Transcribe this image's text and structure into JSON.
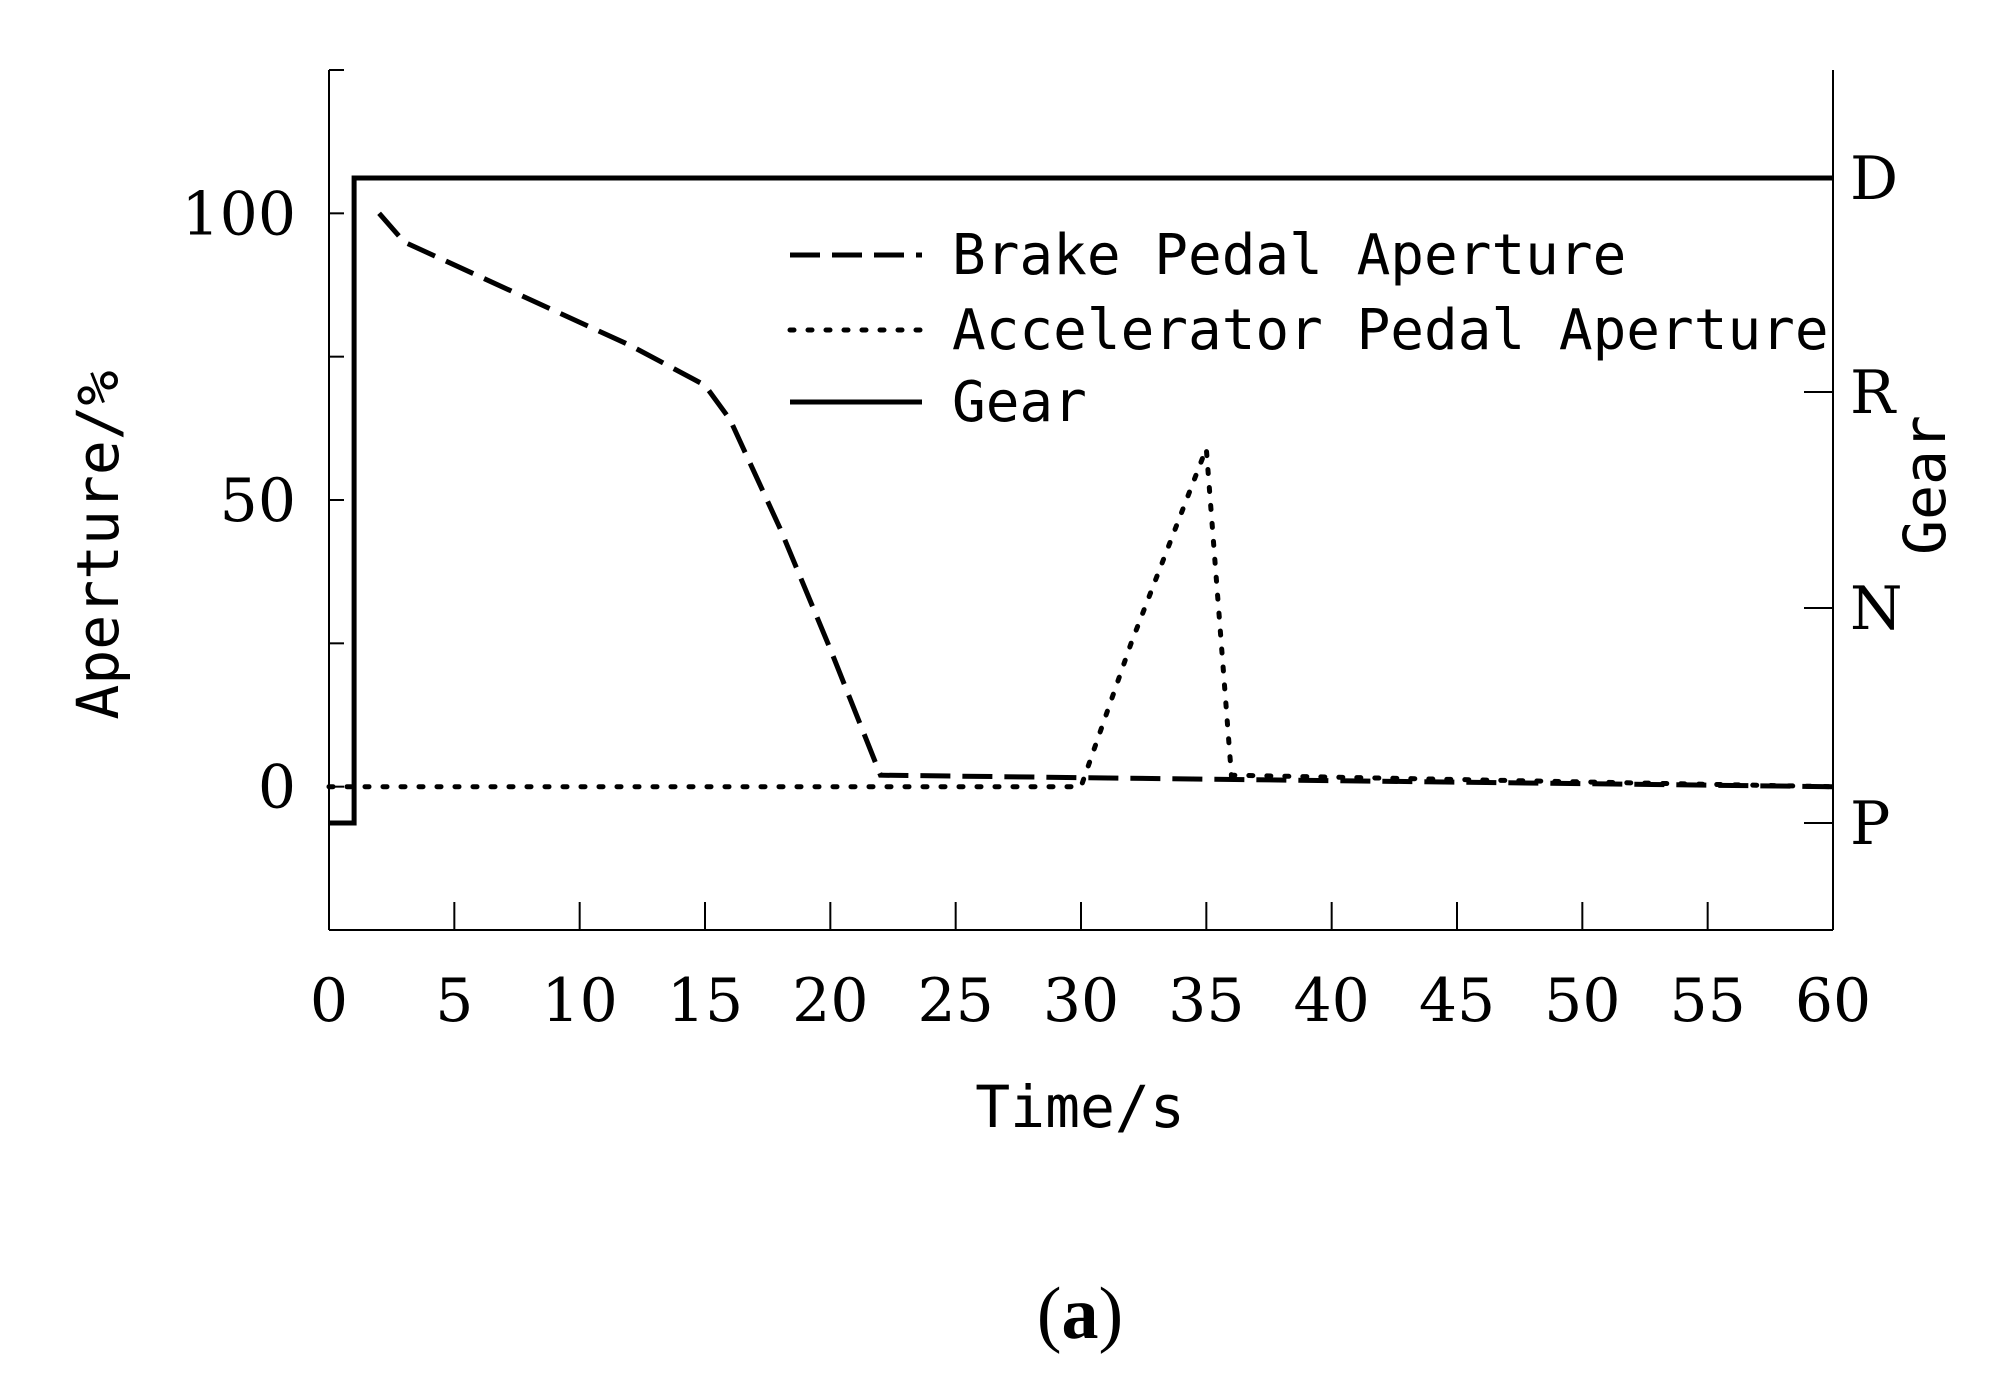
{
  "chart_data": {
    "type": "line",
    "xlabel": "Time/s",
    "ylabel": "Aperture/%",
    "y2label": "Gear",
    "xlim": [
      0,
      60
    ],
    "ylim": [
      -25,
      125
    ],
    "x_ticks": [
      0,
      5,
      10,
      15,
      20,
      25,
      30,
      35,
      40,
      45,
      50,
      55,
      60
    ],
    "y_ticks": [
      0,
      50,
      100
    ],
    "y2_ticks": [
      "D",
      "R",
      "N",
      "P"
    ],
    "grid": false,
    "legend_position": "top-right",
    "series": [
      {
        "name": "Brake Pedal Aperture",
        "style": "dashed",
        "x": [
          2,
          3,
          6,
          9,
          12,
          15,
          16,
          18,
          20,
          22,
          60
        ],
        "y": [
          100,
          95,
          89,
          83,
          77,
          70,
          64,
          45,
          24,
          2,
          0
        ]
      },
      {
        "name": "Accelerator Pedal Aperture",
        "style": "dotted",
        "x": [
          0,
          30,
          32,
          35,
          36,
          60
        ],
        "y": [
          0,
          0,
          25,
          59,
          2,
          0
        ]
      },
      {
        "name": "Gear",
        "style": "solid",
        "axis": "right",
        "x": [
          0,
          1,
          1,
          60
        ],
        "y": [
          "P",
          "P",
          "D",
          "D"
        ]
      }
    ]
  },
  "caption": {
    "open": "(",
    "letter": "a",
    "close": ")"
  }
}
